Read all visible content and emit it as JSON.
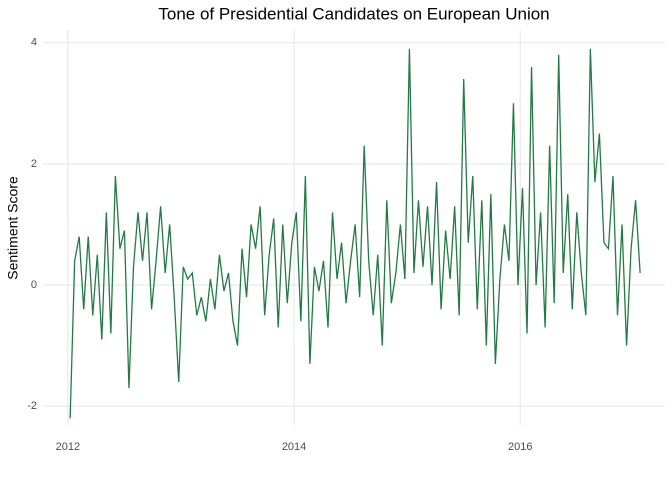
{
  "chart_data": {
    "type": "line",
    "title": "Tone of Presidential Candidates on European Union",
    "y_label": "Sentiment Score",
    "x": [
      2012.02,
      2012.06,
      2012.1,
      2012.14,
      2012.18,
      2012.22,
      2012.26,
      2012.3,
      2012.34,
      2012.38,
      2012.42,
      2012.46,
      2012.5,
      2012.54,
      2012.58,
      2012.62,
      2012.66,
      2012.7,
      2012.74,
      2012.78,
      2012.82,
      2012.86,
      2012.9,
      2012.94,
      2012.98,
      2013.02,
      2013.06,
      2013.1,
      2013.14,
      2013.18,
      2013.22,
      2013.26,
      2013.3,
      2013.34,
      2013.38,
      2013.42,
      2013.46,
      2013.5,
      2013.54,
      2013.58,
      2013.62,
      2013.66,
      2013.7,
      2013.74,
      2013.78,
      2013.82,
      2013.86,
      2013.9,
      2013.94,
      2013.98,
      2014.02,
      2014.06,
      2014.1,
      2014.14,
      2014.18,
      2014.22,
      2014.26,
      2014.3,
      2014.34,
      2014.38,
      2014.42,
      2014.46,
      2014.5,
      2014.54,
      2014.58,
      2014.62,
      2014.66,
      2014.7,
      2014.74,
      2014.78,
      2014.82,
      2014.86,
      2014.9,
      2014.94,
      2014.98,
      2015.02,
      2015.06,
      2015.1,
      2015.14,
      2015.18,
      2015.22,
      2015.26,
      2015.3,
      2015.34,
      2015.38,
      2015.42,
      2015.46,
      2015.5,
      2015.54,
      2015.58,
      2015.62,
      2015.66,
      2015.7,
      2015.74,
      2015.78,
      2015.82,
      2015.86,
      2015.9,
      2015.94,
      2015.98,
      2016.02,
      2016.06,
      2016.1,
      2016.14,
      2016.18,
      2016.22,
      2016.26,
      2016.3,
      2016.34,
      2016.38,
      2016.42,
      2016.46,
      2016.5,
      2016.54,
      2016.58,
      2016.62,
      2016.66,
      2016.7,
      2016.74,
      2016.78,
      2016.82,
      2016.86,
      2016.9,
      2016.94,
      2016.98,
      2017.02,
      2017.06
    ],
    "series": [
      {
        "color": "#237a45",
        "values": [
          -2.2,
          0.4,
          0.8,
          -0.4,
          0.8,
          -0.5,
          0.5,
          -0.9,
          1.2,
          -0.8,
          1.8,
          0.6,
          0.9,
          -1.7,
          0.3,
          1.2,
          0.4,
          1.2,
          -0.4,
          0.4,
          1.3,
          0.2,
          1.0,
          -0.2,
          -1.6,
          0.3,
          0.1,
          0.2,
          -0.5,
          -0.2,
          -0.6,
          0.1,
          -0.4,
          0.5,
          -0.1,
          0.2,
          -0.6,
          -1.0,
          0.6,
          -0.2,
          1.0,
          0.6,
          1.3,
          -0.5,
          0.5,
          1.1,
          -0.7,
          1.0,
          -0.3,
          0.7,
          1.2,
          -0.6,
          1.8,
          -1.3,
          0.3,
          -0.1,
          0.4,
          -0.7,
          1.2,
          0.1,
          0.7,
          -0.3,
          0.4,
          1.0,
          -0.2,
          2.3,
          0.4,
          -0.5,
          0.5,
          -1.0,
          1.4,
          -0.3,
          0.2,
          1.0,
          0.1,
          3.9,
          0.2,
          1.4,
          0.3,
          1.3,
          0.0,
          1.7,
          -0.4,
          0.9,
          0.1,
          1.3,
          -0.5,
          3.4,
          0.7,
          1.8,
          -0.4,
          1.4,
          -1.0,
          1.5,
          -1.3,
          0.1,
          1.0,
          0.4,
          3.0,
          0.0,
          1.6,
          -0.8,
          3.6,
          0.0,
          1.2,
          -0.7,
          2.3,
          -0.3,
          3.8,
          0.2,
          1.5,
          -0.4,
          1.2,
          0.2,
          -0.5,
          3.9,
          1.7,
          2.5,
          0.7,
          0.6,
          1.8,
          -0.5,
          1.0,
          -1.0,
          0.6,
          1.4,
          0.2
        ]
      }
    ],
    "xlim": [
      2011.78,
      2017.28
    ],
    "xticks": [
      2012,
      2014,
      2016
    ],
    "ylim": [
      -2.31,
      4.21
    ],
    "yticks": [
      -2,
      0,
      2,
      4
    ],
    "grid": true
  }
}
